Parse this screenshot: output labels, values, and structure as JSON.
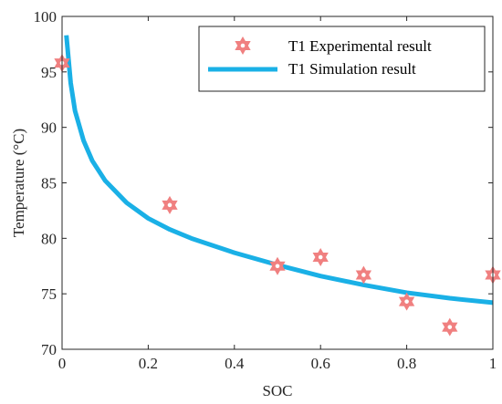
{
  "chart_data": {
    "type": "scatter",
    "xlabel": "SOC",
    "ylabel": "Temperature (°C)",
    "xlim": [
      0,
      1
    ],
    "ylim": [
      70,
      100
    ],
    "xticks": [
      0,
      0.2,
      0.4,
      0.6,
      0.8,
      1
    ],
    "yticks": [
      70,
      75,
      80,
      85,
      90,
      95,
      100
    ],
    "x_tick_labels": [
      "0",
      "0.2",
      "0.4",
      "0.6",
      "0.8",
      "1"
    ],
    "y_tick_labels": [
      "70",
      "75",
      "80",
      "85",
      "90",
      "95",
      "100"
    ],
    "grid": false,
    "legend_position": "top-right",
    "series": [
      {
        "name": "T1 Experimental result",
        "kind": "scatter",
        "marker": "hexagram",
        "color": "#f08080",
        "x": [
          0,
          0.25,
          0.5,
          0.6,
          0.7,
          0.8,
          0.9,
          1.0
        ],
        "y": [
          95.8,
          83.0,
          77.5,
          78.3,
          76.7,
          74.3,
          72.0,
          76.7
        ]
      },
      {
        "name": "T1 Simulation result",
        "kind": "line",
        "color": "#1ab0e6",
        "x": [
          0.01,
          0.02,
          0.03,
          0.05,
          0.07,
          0.1,
          0.15,
          0.2,
          0.25,
          0.3,
          0.4,
          0.5,
          0.6,
          0.7,
          0.8,
          0.9,
          1.0
        ],
        "y": [
          98.3,
          94.0,
          91.5,
          88.8,
          87.0,
          85.2,
          83.2,
          81.8,
          80.8,
          80.0,
          78.7,
          77.6,
          76.6,
          75.8,
          75.1,
          74.6,
          74.2
        ]
      }
    ]
  }
}
